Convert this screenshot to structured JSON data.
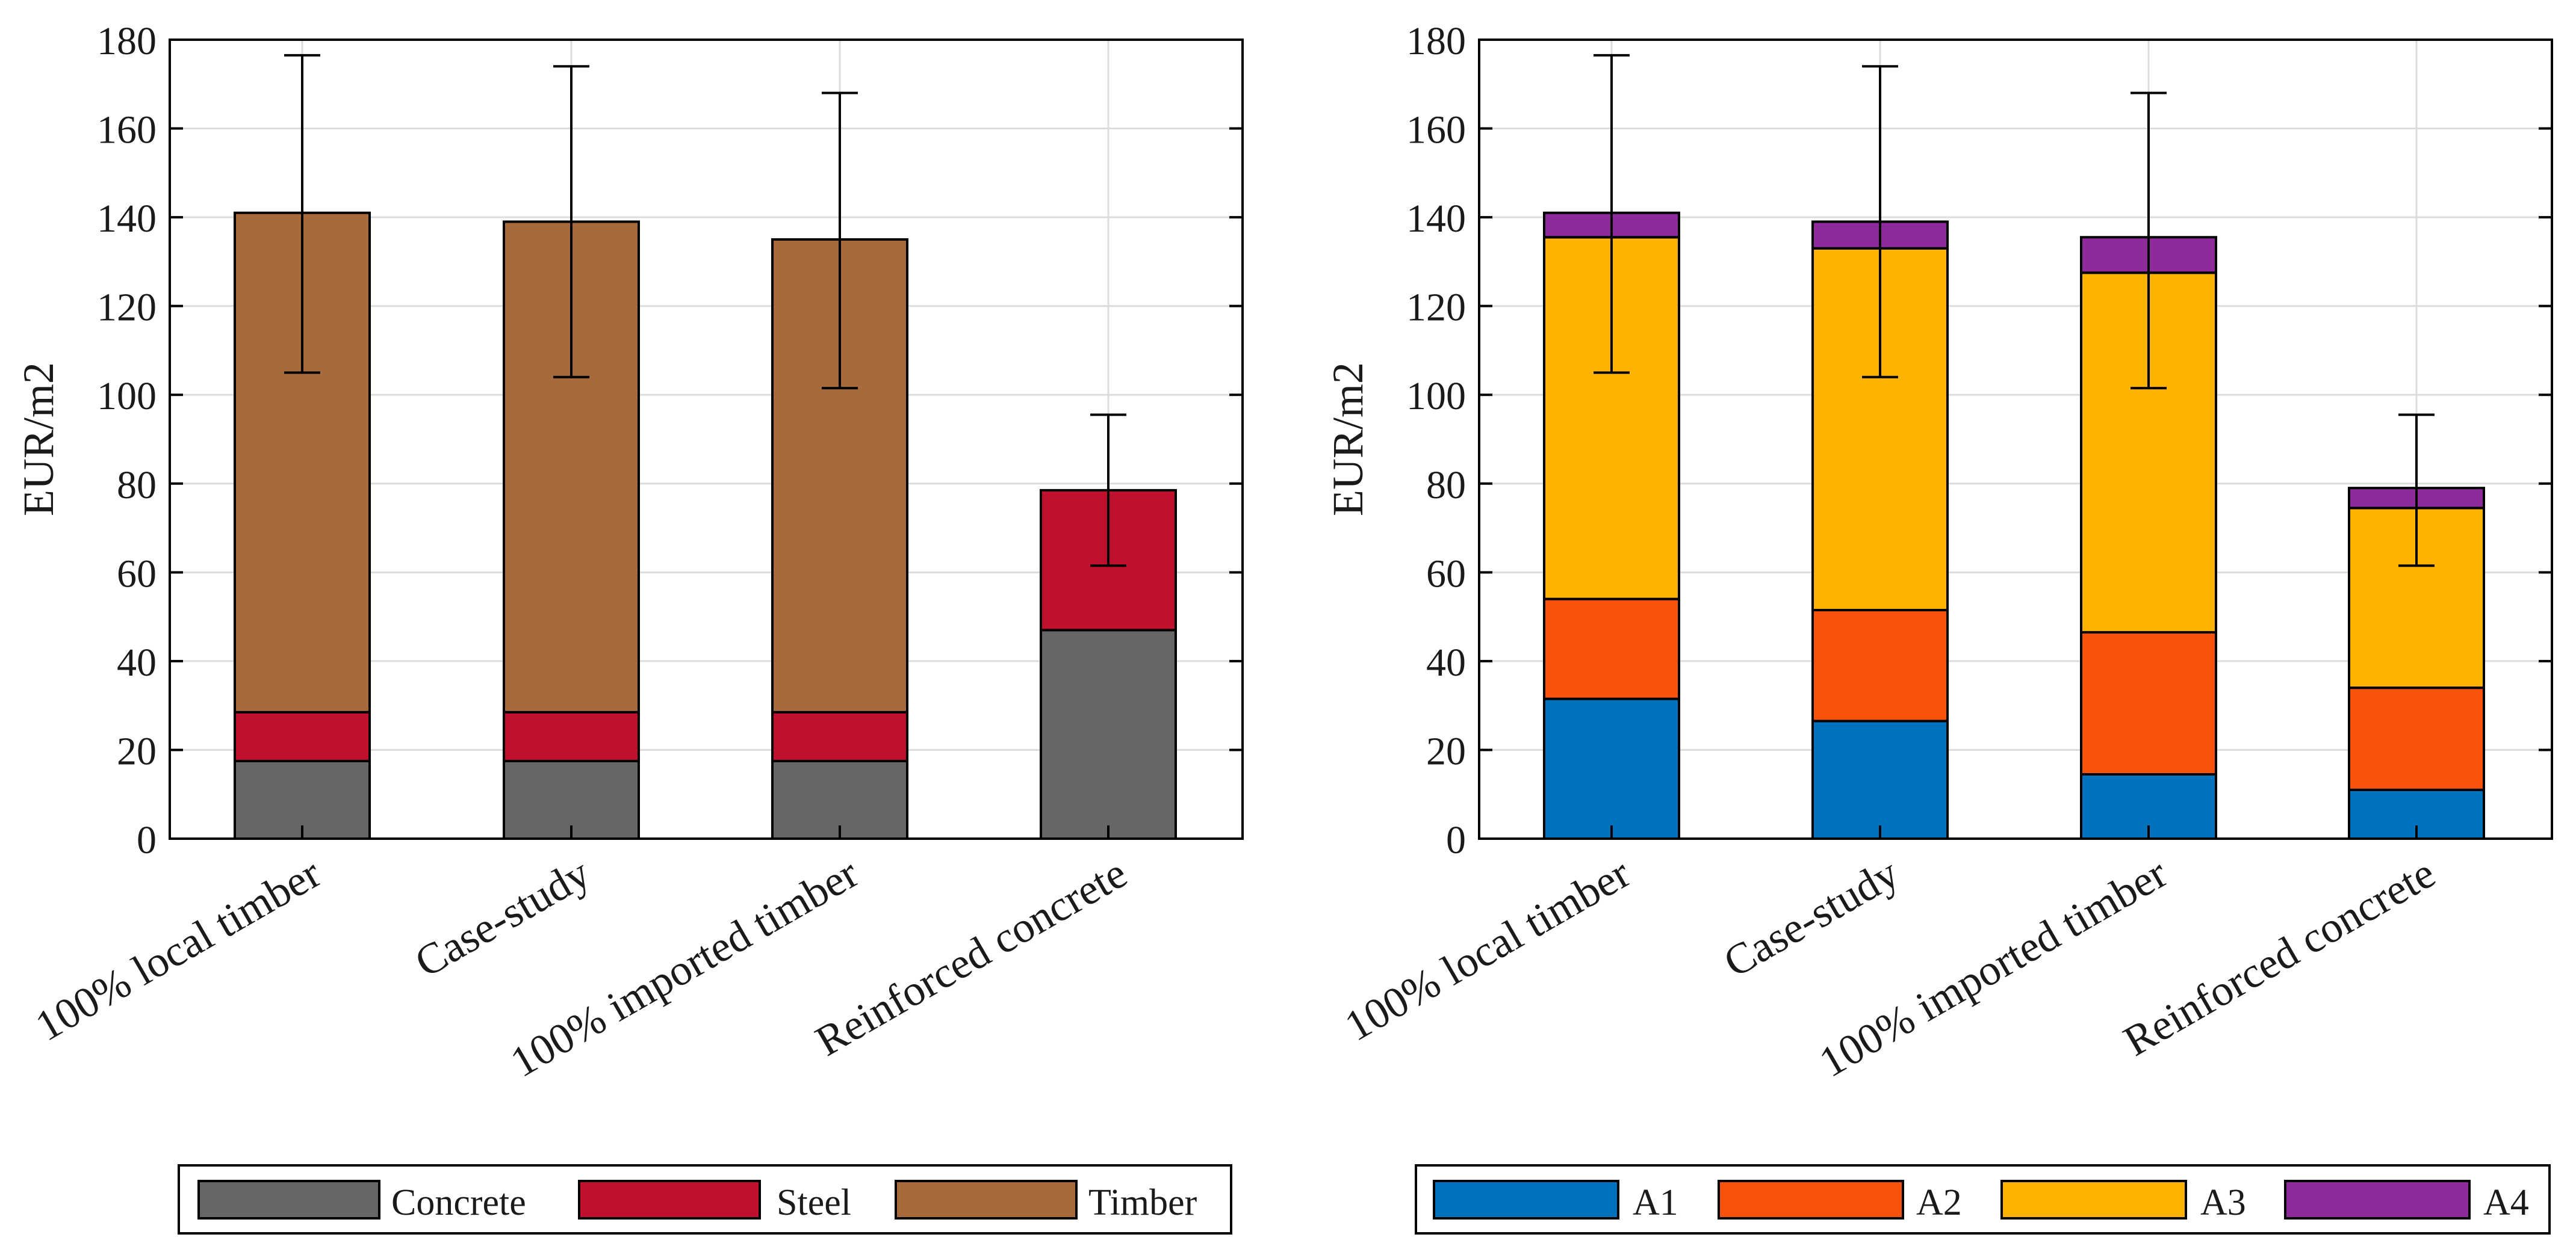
{
  "chart_data": [
    {
      "type": "bar",
      "stacked": true,
      "title": "",
      "xlabel": "",
      "ylabel": "EUR/m2",
      "ylim": [
        0,
        180
      ],
      "yticks": [
        0,
        20,
        40,
        60,
        80,
        100,
        120,
        140,
        160,
        180
      ],
      "grid": true,
      "legend_position": "bottom",
      "categories": [
        "100% local timber",
        "Case-study",
        "100% imported timber",
        "Reinforced concrete"
      ],
      "series": [
        {
          "name": "Concrete",
          "color": "#666666",
          "values": [
            17.5,
            17.5,
            17.5,
            47
          ]
        },
        {
          "name": "Steel",
          "color": "#C0102D",
          "values": [
            11,
            11,
            11,
            31.5
          ]
        },
        {
          "name": "Timber",
          "color": "#A86A3C",
          "values": [
            112.5,
            110.5,
            106.5,
            0
          ]
        }
      ],
      "error_bars": [
        {
          "low": 105,
          "high": 176.5
        },
        {
          "low": 104,
          "high": 174
        },
        {
          "low": 101.5,
          "high": 168
        },
        {
          "low": 61.5,
          "high": 95.5
        }
      ]
    },
    {
      "type": "bar",
      "stacked": true,
      "title": "",
      "xlabel": "",
      "ylabel": "EUR/m2",
      "ylim": [
        0,
        180
      ],
      "yticks": [
        0,
        20,
        40,
        60,
        80,
        100,
        120,
        140,
        160,
        180
      ],
      "grid": true,
      "legend_position": "bottom",
      "categories": [
        "100% local timber",
        "Case-study",
        "100% imported timber",
        "Reinforced concrete"
      ],
      "series": [
        {
          "name": "A1",
          "color": "#0072BD",
          "values": [
            31.5,
            26.5,
            14.5,
            11
          ]
        },
        {
          "name": "A2",
          "color": "#F8520C",
          "values": [
            22.5,
            25,
            32,
            23
          ]
        },
        {
          "name": "A3",
          "color": "#FFB300",
          "values": [
            81.5,
            81.5,
            81,
            40.5
          ]
        },
        {
          "name": "A4",
          "color": "#8E2A9C",
          "values": [
            5.5,
            6,
            8,
            4.5
          ]
        }
      ],
      "error_bars": [
        {
          "low": 105,
          "high": 176.5
        },
        {
          "low": 104,
          "high": 174
        },
        {
          "low": 101.5,
          "high": 168
        },
        {
          "low": 61.5,
          "high": 95.5
        }
      ]
    }
  ]
}
